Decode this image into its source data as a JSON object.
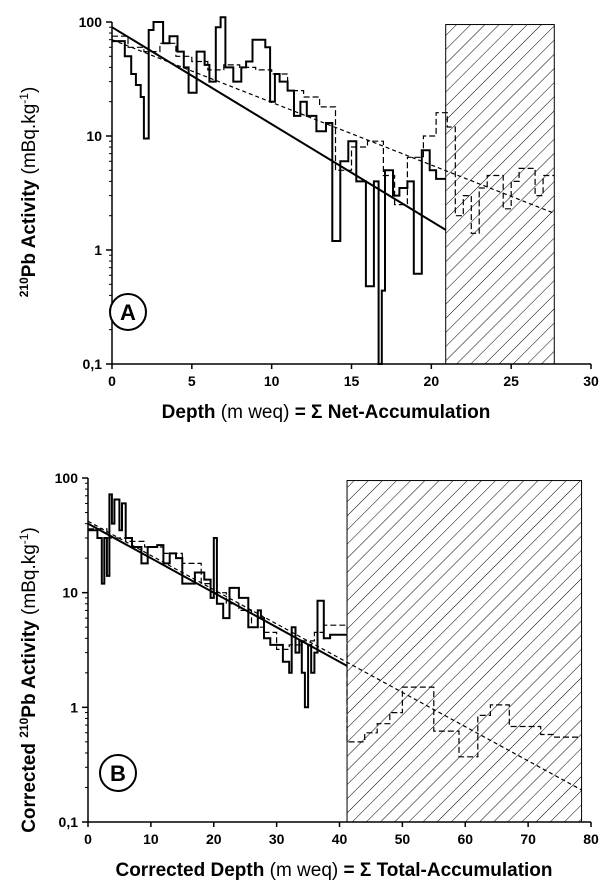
{
  "chart_data": [
    {
      "panel": "A",
      "type": "line",
      "y_scale": "log",
      "xlim": [
        0,
        30
      ],
      "ylim": [
        0.1,
        100
      ],
      "x_ticks": [
        "0",
        "5",
        "10",
        "15",
        "20",
        "25",
        "30"
      ],
      "y_ticks": [
        "0,1",
        "1",
        "10",
        "100"
      ],
      "xlabel": {
        "main": "Depth",
        "unit": "(m weq)",
        "tail": "= Σ Net-Accumulation"
      },
      "ylabel": {
        "sup": "210",
        "main": "Pb Activity",
        "unit_pre": "(mBq.kg",
        "unit_sup": "-1",
        "unit_post": ")"
      },
      "label": "A",
      "hatched_region": [
        20.9,
        27.7
      ],
      "measured_step": [
        [
          0,
          68
        ],
        [
          0.8,
          68
        ],
        [
          0.8,
          50
        ],
        [
          1.2,
          50
        ],
        [
          1.2,
          35
        ],
        [
          1.5,
          35
        ],
        [
          1.5,
          28
        ],
        [
          1.8,
          28
        ],
        [
          1.8,
          22
        ],
        [
          2.0,
          22
        ],
        [
          2.0,
          9.5
        ],
        [
          2.3,
          9.5
        ],
        [
          2.3,
          85
        ],
        [
          2.6,
          85
        ],
        [
          2.6,
          100
        ],
        [
          3.2,
          100
        ],
        [
          3.2,
          65
        ],
        [
          3.6,
          65
        ],
        [
          3.6,
          75
        ],
        [
          4.1,
          75
        ],
        [
          4.1,
          55
        ],
        [
          4.5,
          55
        ],
        [
          4.5,
          40
        ],
        [
          4.8,
          40
        ],
        [
          4.8,
          24
        ],
        [
          5.3,
          24
        ],
        [
          5.3,
          55
        ],
        [
          5.8,
          55
        ],
        [
          5.8,
          42
        ],
        [
          6.1,
          42
        ],
        [
          6.1,
          30
        ],
        [
          6.5,
          30
        ],
        [
          6.5,
          90
        ],
        [
          6.8,
          90
        ],
        [
          6.8,
          110
        ],
        [
          7.1,
          110
        ],
        [
          7.1,
          40
        ],
        [
          7.6,
          40
        ],
        [
          7.6,
          30
        ],
        [
          8.1,
          30
        ],
        [
          8.1,
          40
        ],
        [
          8.4,
          40
        ],
        [
          8.4,
          45
        ],
        [
          8.8,
          45
        ],
        [
          8.8,
          70
        ],
        [
          9.6,
          70
        ],
        [
          9.6,
          60
        ],
        [
          9.9,
          60
        ],
        [
          9.9,
          20
        ],
        [
          10.2,
          20
        ],
        [
          10.2,
          35
        ],
        [
          10.5,
          35
        ],
        [
          10.5,
          30
        ],
        [
          11.0,
          30
        ],
        [
          11.0,
          25
        ],
        [
          11.4,
          25
        ],
        [
          11.4,
          15
        ],
        [
          11.8,
          15
        ],
        [
          11.8,
          20
        ],
        [
          12.2,
          20
        ],
        [
          12.2,
          15
        ],
        [
          12.8,
          15
        ],
        [
          12.8,
          11
        ],
        [
          13.4,
          11
        ],
        [
          13.4,
          13
        ],
        [
          13.8,
          13
        ],
        [
          13.8,
          1.2
        ],
        [
          14.3,
          1.2
        ],
        [
          14.3,
          6
        ],
        [
          14.8,
          6
        ],
        [
          14.8,
          9
        ],
        [
          15.3,
          9
        ],
        [
          15.3,
          4
        ],
        [
          15.9,
          4
        ],
        [
          15.9,
          0.48
        ],
        [
          16.4,
          0.48
        ],
        [
          16.4,
          4
        ],
        [
          16.7,
          4
        ],
        [
          16.7,
          0.1
        ],
        [
          16.9,
          0.1
        ],
        [
          16.9,
          0.44
        ],
        [
          17.1,
          0.44
        ],
        [
          17.1,
          5
        ],
        [
          17.6,
          5
        ],
        [
          17.6,
          3
        ],
        [
          18.0,
          3
        ],
        [
          18.0,
          3.5
        ],
        [
          18.5,
          3.5
        ],
        [
          18.5,
          4
        ],
        [
          18.9,
          4
        ],
        [
          18.9,
          0.62
        ],
        [
          19.4,
          0.62
        ],
        [
          19.4,
          7.5
        ],
        [
          19.9,
          7.5
        ],
        [
          19.9,
          5
        ],
        [
          20.3,
          5
        ],
        [
          20.3,
          4.2
        ],
        [
          20.9,
          4.2
        ]
      ],
      "corrected_step": [
        [
          0,
          75
        ],
        [
          1.0,
          75
        ],
        [
          1.0,
          60
        ],
        [
          2.0,
          60
        ],
        [
          2.0,
          55
        ],
        [
          3.0,
          55
        ],
        [
          3.0,
          65
        ],
        [
          4.0,
          65
        ],
        [
          4.0,
          50
        ],
        [
          5.0,
          50
        ],
        [
          5.0,
          45
        ],
        [
          6.0,
          45
        ],
        [
          6.0,
          38
        ],
        [
          7.0,
          38
        ],
        [
          7.0,
          42
        ],
        [
          8.0,
          42
        ],
        [
          8.0,
          40
        ],
        [
          9.0,
          40
        ],
        [
          9.0,
          38
        ],
        [
          10.0,
          38
        ],
        [
          10.0,
          35
        ],
        [
          11.0,
          35
        ],
        [
          11.0,
          25
        ],
        [
          12.0,
          25
        ],
        [
          12.0,
          22
        ],
        [
          13.0,
          22
        ],
        [
          13.0,
          18
        ],
        [
          14.0,
          18
        ],
        [
          14.0,
          5
        ],
        [
          15.0,
          5
        ],
        [
          15.0,
          8
        ],
        [
          16.0,
          8
        ],
        [
          16.0,
          9
        ],
        [
          17.0,
          9
        ],
        [
          17.0,
          4.5
        ],
        [
          17.7,
          4.5
        ],
        [
          17.7,
          2.5
        ],
        [
          18.5,
          2.5
        ],
        [
          18.5,
          6.5
        ],
        [
          19.5,
          6.5
        ],
        [
          19.5,
          10
        ],
        [
          20.3,
          10
        ],
        [
          20.3,
          16
        ],
        [
          21.0,
          16
        ],
        [
          21.0,
          12
        ],
        [
          21.5,
          12
        ],
        [
          21.5,
          2
        ],
        [
          22.0,
          2
        ],
        [
          22.0,
          3
        ],
        [
          22.5,
          3
        ],
        [
          22.5,
          1.4
        ],
        [
          23.0,
          1.4
        ],
        [
          23.0,
          3.5
        ],
        [
          23.5,
          3.5
        ],
        [
          23.5,
          4.5
        ],
        [
          24.5,
          4.5
        ],
        [
          24.5,
          2.3
        ],
        [
          25.0,
          2.3
        ],
        [
          25.0,
          4
        ],
        [
          25.5,
          4
        ],
        [
          25.5,
          5.2
        ],
        [
          26.5,
          5.2
        ],
        [
          26.5,
          3
        ],
        [
          27.0,
          3
        ],
        [
          27.0,
          4.5
        ],
        [
          27.7,
          4.5
        ]
      ],
      "fit_solid": [
        [
          0,
          90
        ],
        [
          20.9,
          1.5
        ]
      ],
      "fit_dashed": [
        [
          0,
          70
        ],
        [
          27.7,
          2.1
        ]
      ]
    },
    {
      "panel": "B",
      "type": "line",
      "y_scale": "log",
      "xlim": [
        0,
        80
      ],
      "ylim": [
        0.1,
        100
      ],
      "x_ticks": [
        "0",
        "10",
        "20",
        "30",
        "40",
        "50",
        "60",
        "70",
        "80"
      ],
      "y_ticks": [
        "0,1",
        "1",
        "10",
        "100"
      ],
      "xlabel": {
        "main": "Corrected Depth",
        "unit": "(m weq)",
        "tail": "= Σ Total-Accumulation"
      },
      "ylabel": {
        "pre": "Corrected ",
        "sup": "210",
        "main": "Pb Activity",
        "unit_pre": "(mBq.kg",
        "unit_sup": "-1",
        "unit_post": ")"
      },
      "label": "B",
      "hatched_region": [
        41.2,
        78.5
      ],
      "measured_step": [
        [
          0,
          35
        ],
        [
          1.5,
          35
        ],
        [
          1.5,
          30
        ],
        [
          2.2,
          30
        ],
        [
          2.2,
          12
        ],
        [
          2.6,
          12
        ],
        [
          2.6,
          30
        ],
        [
          3.0,
          30
        ],
        [
          3.0,
          14
        ],
        [
          3.4,
          14
        ],
        [
          3.4,
          72
        ],
        [
          3.8,
          72
        ],
        [
          3.8,
          40
        ],
        [
          4.2,
          40
        ],
        [
          4.2,
          65
        ],
        [
          5.0,
          65
        ],
        [
          5.0,
          35
        ],
        [
          5.4,
          35
        ],
        [
          5.4,
          60
        ],
        [
          6.0,
          60
        ],
        [
          6.0,
          30
        ],
        [
          7.0,
          30
        ],
        [
          7.0,
          25
        ],
        [
          8.5,
          25
        ],
        [
          8.5,
          18
        ],
        [
          9.5,
          18
        ],
        [
          9.5,
          25
        ],
        [
          11.0,
          25
        ],
        [
          11.0,
          26
        ],
        [
          12.0,
          26
        ],
        [
          12.0,
          18
        ],
        [
          13.0,
          18
        ],
        [
          13.0,
          22
        ],
        [
          14.0,
          22
        ],
        [
          14.0,
          20
        ],
        [
          15.0,
          20
        ],
        [
          15.0,
          12
        ],
        [
          17.0,
          12
        ],
        [
          17.0,
          15
        ],
        [
          18.5,
          15
        ],
        [
          18.5,
          13
        ],
        [
          19.5,
          13
        ],
        [
          19.5,
          9
        ],
        [
          20.0,
          9
        ],
        [
          20.0,
          30
        ],
        [
          20.5,
          30
        ],
        [
          20.5,
          8
        ],
        [
          21.5,
          8
        ],
        [
          21.5,
          6
        ],
        [
          22.5,
          6
        ],
        [
          22.5,
          11
        ],
        [
          24.0,
          11
        ],
        [
          24.0,
          9
        ],
        [
          25.5,
          9
        ],
        [
          25.5,
          5
        ],
        [
          27.0,
          5
        ],
        [
          27.0,
          7
        ],
        [
          27.5,
          7
        ],
        [
          27.5,
          6
        ],
        [
          28.0,
          6
        ],
        [
          28.0,
          4
        ],
        [
          29.0,
          4
        ],
        [
          29.0,
          3.5
        ],
        [
          31.0,
          3.5
        ],
        [
          31.0,
          2.5
        ],
        [
          32.0,
          2.5
        ],
        [
          32.0,
          2
        ],
        [
          32.4,
          2
        ],
        [
          32.4,
          5
        ],
        [
          33.0,
          5
        ],
        [
          33.0,
          3
        ],
        [
          33.6,
          3
        ],
        [
          33.6,
          3.8
        ],
        [
          34.0,
          3.8
        ],
        [
          34.0,
          2
        ],
        [
          34.5,
          2
        ],
        [
          34.5,
          1
        ],
        [
          35.0,
          1
        ],
        [
          35.0,
          3.5
        ],
        [
          35.5,
          3.5
        ],
        [
          35.5,
          2
        ],
        [
          36.0,
          2
        ],
        [
          36.0,
          3
        ],
        [
          36.5,
          3
        ],
        [
          36.5,
          8.5
        ],
        [
          37.5,
          8.5
        ],
        [
          37.5,
          4
        ],
        [
          38.5,
          4
        ],
        [
          38.5,
          4.3
        ],
        [
          41.2,
          4.3
        ]
      ],
      "corrected_step": [
        [
          0,
          36
        ],
        [
          3,
          36
        ],
        [
          3,
          30
        ],
        [
          6,
          30
        ],
        [
          6,
          28
        ],
        [
          9,
          28
        ],
        [
          9,
          25
        ],
        [
          12,
          25
        ],
        [
          12,
          22
        ],
        [
          15,
          22
        ],
        [
          15,
          18
        ],
        [
          18,
          18
        ],
        [
          18,
          12
        ],
        [
          20,
          12
        ],
        [
          20,
          10
        ],
        [
          22,
          10
        ],
        [
          22,
          8
        ],
        [
          24,
          8
        ],
        [
          24,
          7
        ],
        [
          26,
          7
        ],
        [
          26,
          5
        ],
        [
          28,
          5
        ],
        [
          28,
          4.5
        ],
        [
          30,
          4.5
        ],
        [
          30,
          3.2
        ],
        [
          32,
          3.2
        ],
        [
          32,
          3.5
        ],
        [
          34,
          3.5
        ],
        [
          34,
          3.8
        ],
        [
          36,
          3.8
        ],
        [
          36,
          4.5
        ],
        [
          37.5,
          4.5
        ],
        [
          37.5,
          5.2
        ],
        [
          41.2,
          5.2
        ],
        [
          41.2,
          0.5
        ],
        [
          44,
          0.5
        ],
        [
          44,
          0.6
        ],
        [
          46,
          0.6
        ],
        [
          46,
          0.72
        ],
        [
          48,
          0.72
        ],
        [
          48,
          0.9
        ],
        [
          50,
          0.9
        ],
        [
          50,
          1.5
        ],
        [
          55,
          1.5
        ],
        [
          55,
          0.62
        ],
        [
          59,
          0.62
        ],
        [
          59,
          0.37
        ],
        [
          62,
          0.37
        ],
        [
          62,
          0.85
        ],
        [
          64,
          0.85
        ],
        [
          64,
          1.05
        ],
        [
          67,
          1.05
        ],
        [
          67,
          0.68
        ],
        [
          72,
          0.68
        ],
        [
          72,
          0.58
        ],
        [
          74,
          0.58
        ],
        [
          74,
          0.55
        ],
        [
          78.5,
          0.55
        ]
      ],
      "fit_solid": [
        [
          0,
          40
        ],
        [
          41.2,
          2.3
        ]
      ],
      "fit_dashed": [
        [
          0,
          42
        ],
        [
          78.5,
          0.19
        ]
      ]
    }
  ]
}
